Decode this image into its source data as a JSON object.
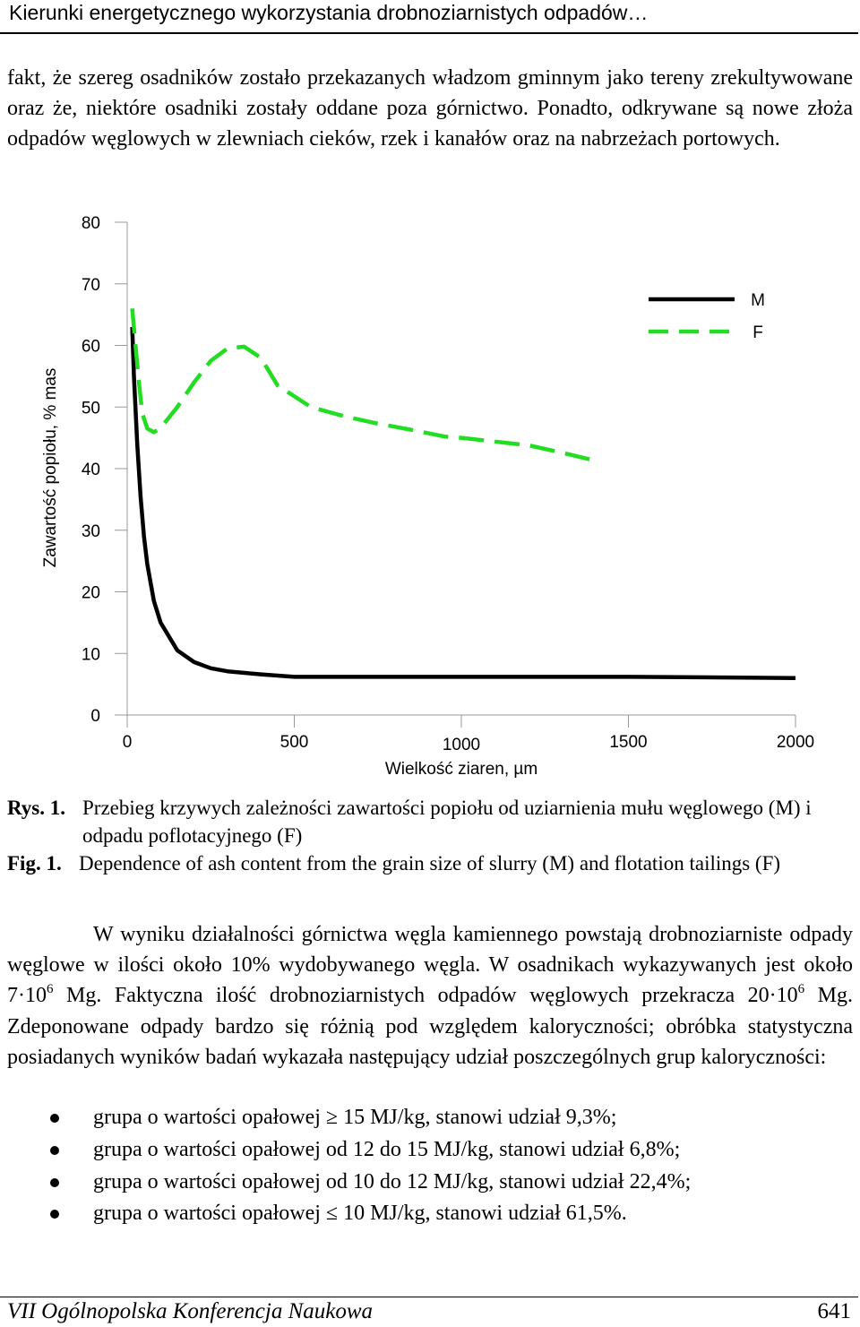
{
  "header": {
    "title": "Kierunki energetycznego wykorzystania drobnoziarnistych odpadów…"
  },
  "paragraph1": "fakt, że szereg osadników zostało przekazanych władzom gminnym jako tereny zrekultywowane oraz że, niektóre osadniki zostały oddane poza górnictwo. Ponadto, odkrywane są nowe złoża odpadów węglowych w zlewniach cieków, rzek i kanałów oraz na nabrzeżach portowych.",
  "chart_data": {
    "type": "line",
    "ylabel": "Zawartość popiołu, % mas",
    "xlabel": "Wielkość ziaren, µm",
    "xlim": [
      0,
      2000
    ],
    "ylim": [
      0,
      80
    ],
    "x_ticks": [
      "0",
      "500",
      "1000",
      "1500",
      "2000"
    ],
    "y_ticks": [
      "0",
      "10",
      "20",
      "30",
      "40",
      "50",
      "60",
      "70",
      "80"
    ],
    "grid": false,
    "legend_position": "top-right",
    "series": [
      {
        "name": "M",
        "color": "#000000",
        "style": "solid",
        "x": [
          15,
          20,
          30,
          40,
          50,
          60,
          80,
          100,
          150,
          200,
          250,
          300,
          400,
          500,
          600,
          800,
          1000,
          1200,
          1500,
          1800,
          2000
        ],
        "y": [
          63,
          55,
          44,
          35.5,
          29,
          24.5,
          18.5,
          15,
          10.5,
          8.6,
          7.6,
          7.1,
          6.6,
          6.2,
          6.2,
          6.2,
          6.2,
          6.2,
          6.2,
          6.1,
          6.0
        ]
      },
      {
        "name": "F",
        "color": "#22dd22",
        "style": "dashed",
        "x": [
          15,
          25,
          35,
          45,
          60,
          80,
          100,
          150,
          200,
          250,
          300,
          350,
          400,
          450,
          550,
          650,
          750,
          850,
          950,
          1000,
          1100,
          1200,
          1300,
          1400
        ],
        "y": [
          66,
          60,
          54,
          49,
          46.5,
          45.9,
          46.6,
          50,
          54,
          57.5,
          59.5,
          59.8,
          58,
          53.5,
          50,
          48.5,
          47.3,
          46.3,
          45.2,
          45,
          44.4,
          43.8,
          42.6,
          41.3
        ]
      }
    ]
  },
  "captions": {
    "pl_label": "Rys. 1.",
    "pl_text": "Przebieg krzywych zależności zawartości popiołu od uziarnienia mułu węglowego (M) i odpadu poflotacyjnego (F)",
    "en_label": "Fig. 1.",
    "en_text": "Dependence of ash content from the grain size of slurry (M) and flotation tailings (F)"
  },
  "paragraph2": {
    "part1": "W wyniku działalności górnictwa węgla kamiennego powstają drobnoziarniste odpady węglowe w ilości około 10% wydobywanego węgla. W osadnikach wykazywanych jest około 7·10",
    "sup1": "6",
    "part2": " Mg. Faktyczna ilość drobnoziarnistych odpadów węglowych przekracza 20·10",
    "sup2": "6",
    "part3": " Mg. Zdeponowane odpady bardzo się różnią pod względem kaloryczności; obróbka statystyczna posiadanych wyników badań wykazała następujący udział poszczególnych grup kaloryczności:"
  },
  "bullets": [
    "grupa o wartości opałowej ≥ 15 MJ/kg, stanowi udział 9,3%;",
    "grupa o wartości opałowej od 12 do 15 MJ/kg, stanowi udział 6,8%;",
    "grupa o wartości opałowej od 10 do 12 MJ/kg, stanowi udział 22,4%;",
    "grupa o wartości opałowej ≤ 10 MJ/kg, stanowi udział 61,5%."
  ],
  "footer": {
    "conference": "VII Ogólnopolska Konferencja Naukowa",
    "page": "641"
  }
}
